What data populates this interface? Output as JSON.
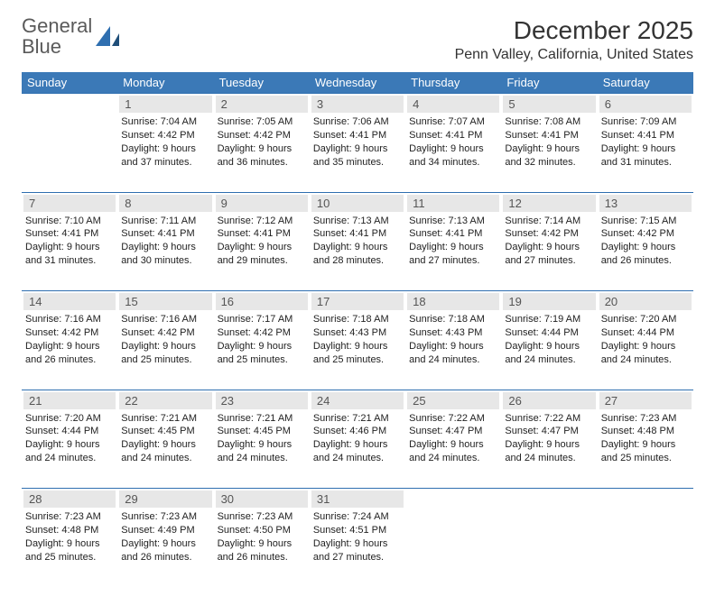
{
  "brand": {
    "part1": "General",
    "part2": "Blue"
  },
  "title": "December 2025",
  "location": "Penn Valley, California, United States",
  "colors": {
    "header_bg": "#3b79b7",
    "header_text": "#ffffff",
    "daynum_bg": "#e7e7e7",
    "daynum_text": "#555555",
    "rule": "#2f6fb0",
    "logo_gray": "#5a5a5a",
    "logo_blue": "#2f6fb0",
    "body_text": "#222222"
  },
  "day_headers": [
    "Sunday",
    "Monday",
    "Tuesday",
    "Wednesday",
    "Thursday",
    "Friday",
    "Saturday"
  ],
  "weeks": [
    [
      null,
      {
        "n": "1",
        "sr": "7:04 AM",
        "ss": "4:42 PM",
        "dl": "9 hours and 37 minutes."
      },
      {
        "n": "2",
        "sr": "7:05 AM",
        "ss": "4:42 PM",
        "dl": "9 hours and 36 minutes."
      },
      {
        "n": "3",
        "sr": "7:06 AM",
        "ss": "4:41 PM",
        "dl": "9 hours and 35 minutes."
      },
      {
        "n": "4",
        "sr": "7:07 AM",
        "ss": "4:41 PM",
        "dl": "9 hours and 34 minutes."
      },
      {
        "n": "5",
        "sr": "7:08 AM",
        "ss": "4:41 PM",
        "dl": "9 hours and 32 minutes."
      },
      {
        "n": "6",
        "sr": "7:09 AM",
        "ss": "4:41 PM",
        "dl": "9 hours and 31 minutes."
      }
    ],
    [
      {
        "n": "7",
        "sr": "7:10 AM",
        "ss": "4:41 PM",
        "dl": "9 hours and 31 minutes."
      },
      {
        "n": "8",
        "sr": "7:11 AM",
        "ss": "4:41 PM",
        "dl": "9 hours and 30 minutes."
      },
      {
        "n": "9",
        "sr": "7:12 AM",
        "ss": "4:41 PM",
        "dl": "9 hours and 29 minutes."
      },
      {
        "n": "10",
        "sr": "7:13 AM",
        "ss": "4:41 PM",
        "dl": "9 hours and 28 minutes."
      },
      {
        "n": "11",
        "sr": "7:13 AM",
        "ss": "4:41 PM",
        "dl": "9 hours and 27 minutes."
      },
      {
        "n": "12",
        "sr": "7:14 AM",
        "ss": "4:42 PM",
        "dl": "9 hours and 27 minutes."
      },
      {
        "n": "13",
        "sr": "7:15 AM",
        "ss": "4:42 PM",
        "dl": "9 hours and 26 minutes."
      }
    ],
    [
      {
        "n": "14",
        "sr": "7:16 AM",
        "ss": "4:42 PM",
        "dl": "9 hours and 26 minutes."
      },
      {
        "n": "15",
        "sr": "7:16 AM",
        "ss": "4:42 PM",
        "dl": "9 hours and 25 minutes."
      },
      {
        "n": "16",
        "sr": "7:17 AM",
        "ss": "4:42 PM",
        "dl": "9 hours and 25 minutes."
      },
      {
        "n": "17",
        "sr": "7:18 AM",
        "ss": "4:43 PM",
        "dl": "9 hours and 25 minutes."
      },
      {
        "n": "18",
        "sr": "7:18 AM",
        "ss": "4:43 PM",
        "dl": "9 hours and 24 minutes."
      },
      {
        "n": "19",
        "sr": "7:19 AM",
        "ss": "4:44 PM",
        "dl": "9 hours and 24 minutes."
      },
      {
        "n": "20",
        "sr": "7:20 AM",
        "ss": "4:44 PM",
        "dl": "9 hours and 24 minutes."
      }
    ],
    [
      {
        "n": "21",
        "sr": "7:20 AM",
        "ss": "4:44 PM",
        "dl": "9 hours and 24 minutes."
      },
      {
        "n": "22",
        "sr": "7:21 AM",
        "ss": "4:45 PM",
        "dl": "9 hours and 24 minutes."
      },
      {
        "n": "23",
        "sr": "7:21 AM",
        "ss": "4:45 PM",
        "dl": "9 hours and 24 minutes."
      },
      {
        "n": "24",
        "sr": "7:21 AM",
        "ss": "4:46 PM",
        "dl": "9 hours and 24 minutes."
      },
      {
        "n": "25",
        "sr": "7:22 AM",
        "ss": "4:47 PM",
        "dl": "9 hours and 24 minutes."
      },
      {
        "n": "26",
        "sr": "7:22 AM",
        "ss": "4:47 PM",
        "dl": "9 hours and 24 minutes."
      },
      {
        "n": "27",
        "sr": "7:23 AM",
        "ss": "4:48 PM",
        "dl": "9 hours and 25 minutes."
      }
    ],
    [
      {
        "n": "28",
        "sr": "7:23 AM",
        "ss": "4:48 PM",
        "dl": "9 hours and 25 minutes."
      },
      {
        "n": "29",
        "sr": "7:23 AM",
        "ss": "4:49 PM",
        "dl": "9 hours and 26 minutes."
      },
      {
        "n": "30",
        "sr": "7:23 AM",
        "ss": "4:50 PM",
        "dl": "9 hours and 26 minutes."
      },
      {
        "n": "31",
        "sr": "7:24 AM",
        "ss": "4:51 PM",
        "dl": "9 hours and 27 minutes."
      },
      null,
      null,
      null
    ]
  ],
  "labels": {
    "sunrise": "Sunrise:",
    "sunset": "Sunset:",
    "daylight": "Daylight:"
  }
}
